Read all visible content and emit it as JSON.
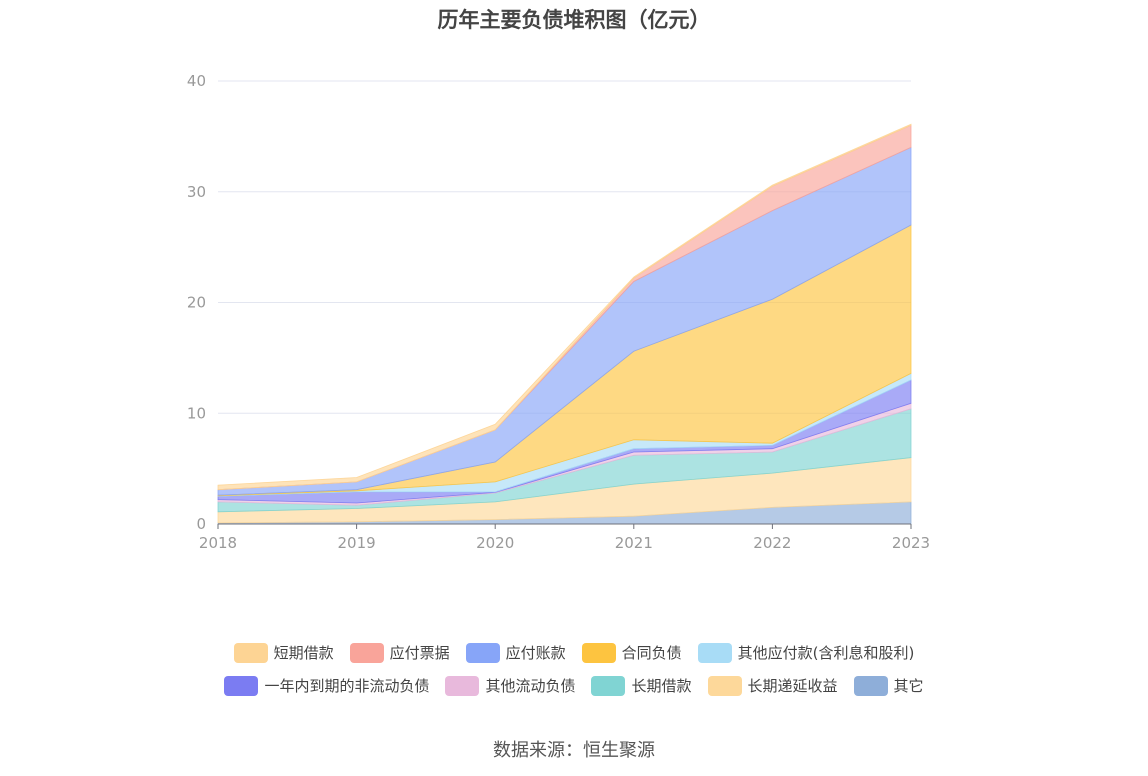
{
  "chart_data": {
    "type": "area",
    "stacked": true,
    "title": "历年主要负债堆积图（亿元）",
    "x": [
      "2018",
      "2019",
      "2020",
      "2021",
      "2022",
      "2023"
    ],
    "ylim": [
      0,
      40
    ],
    "yticks": [
      0,
      10,
      20,
      30,
      40
    ],
    "grid": true,
    "legend_position": "bottom",
    "series": [
      {
        "name": "其它",
        "color": "#8eaed9",
        "values": [
          0.1,
          0.2,
          0.4,
          0.7,
          1.5,
          2.0
        ]
      },
      {
        "name": "长期递延收益",
        "color": "#fdd89a",
        "values": [
          1.0,
          1.2,
          1.6,
          2.9,
          3.1,
          4.0
        ]
      },
      {
        "name": "长期借款",
        "color": "#80d4d3",
        "values": [
          0.9,
          0.3,
          0.8,
          2.6,
          1.9,
          4.4
        ]
      },
      {
        "name": "其他流动负债",
        "color": "#e8b9dc",
        "values": [
          0.2,
          0.2,
          0.05,
          0.3,
          0.3,
          0.5
        ]
      },
      {
        "name": "一年内到期的非流动负债",
        "color": "#7b7cf2",
        "values": [
          0.3,
          1.0,
          0.05,
          0.3,
          0.3,
          2.1
        ]
      },
      {
        "name": "其他应付款(含利息和股利)",
        "color": "#a8dcf6",
        "values": [
          0.05,
          0.1,
          0.9,
          0.8,
          0.2,
          0.6
        ]
      },
      {
        "name": "合同负债",
        "color": "#fdc440",
        "values": [
          0.05,
          0.1,
          1.8,
          8.0,
          13.0,
          13.4
        ]
      },
      {
        "name": "应付账款",
        "color": "#87a5f8",
        "values": [
          0.5,
          0.7,
          2.9,
          6.3,
          8.0,
          7.0
        ]
      },
      {
        "name": "应付票据",
        "color": "#f9a49a",
        "values": [
          0.0,
          0.0,
          0.0,
          0.3,
          2.2,
          2.0
        ]
      },
      {
        "name": "短期借款",
        "color": "#fdd494",
        "values": [
          0.4,
          0.4,
          0.5,
          0.1,
          0.1,
          0.1
        ]
      }
    ],
    "legend": [
      [
        "短期借款",
        "应付票据",
        "应付账款",
        "合同负债",
        "其他应付款(含利息和股利)"
      ],
      [
        "一年内到期的非流动负债",
        "其他流动负债",
        "长期借款",
        "长期递延收益",
        "其它"
      ]
    ]
  },
  "source": "数据来源：恒生聚源"
}
